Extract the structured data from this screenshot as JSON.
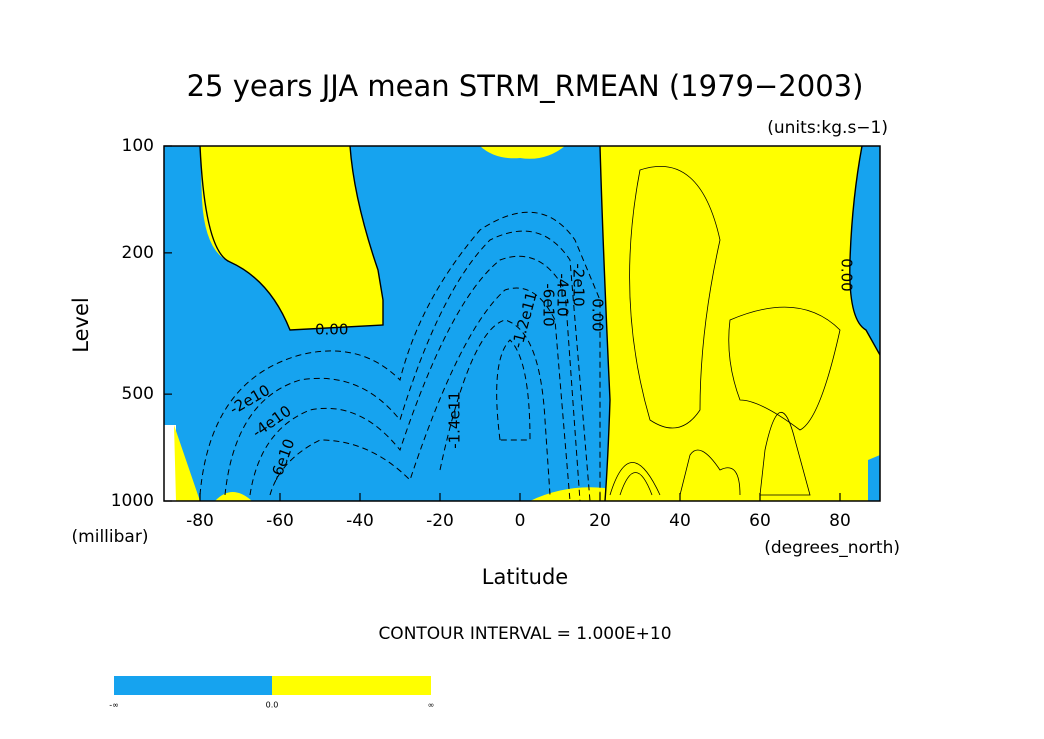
{
  "chart_data": {
    "type": "contour",
    "title": "25 years JJA mean STRM_RMEAN (1979−2003)",
    "subtitle": "(units:kg.s−1)",
    "x_label": "Latitude",
    "y_label": "Level",
    "x_unit": "(degrees_north)",
    "y_unit": "(millibar)",
    "xlim": [
      -89,
      90
    ],
    "xticks": [
      -80,
      -60,
      -40,
      -20,
      0,
      20,
      40,
      60,
      80
    ],
    "ylim": [
      1000,
      100
    ],
    "yticks": [
      100,
      200,
      500,
      1000
    ],
    "y_scale": "log",
    "note": "CONTOUR INTERVAL = 1.000E+10",
    "contour_labels": [
      "0.00",
      "0.00",
      "0.00",
      "-2e10",
      "-4e10",
      "-6e10",
      "-1.4e11",
      "-1.2e11",
      "-2e10",
      "-4e10",
      "-6e10"
    ],
    "colors": {
      "negative": "#16a3ef",
      "positive": "#ffff00"
    },
    "colorbar": {
      "labels": [
        "-∞",
        "0.0",
        "∞"
      ]
    }
  }
}
